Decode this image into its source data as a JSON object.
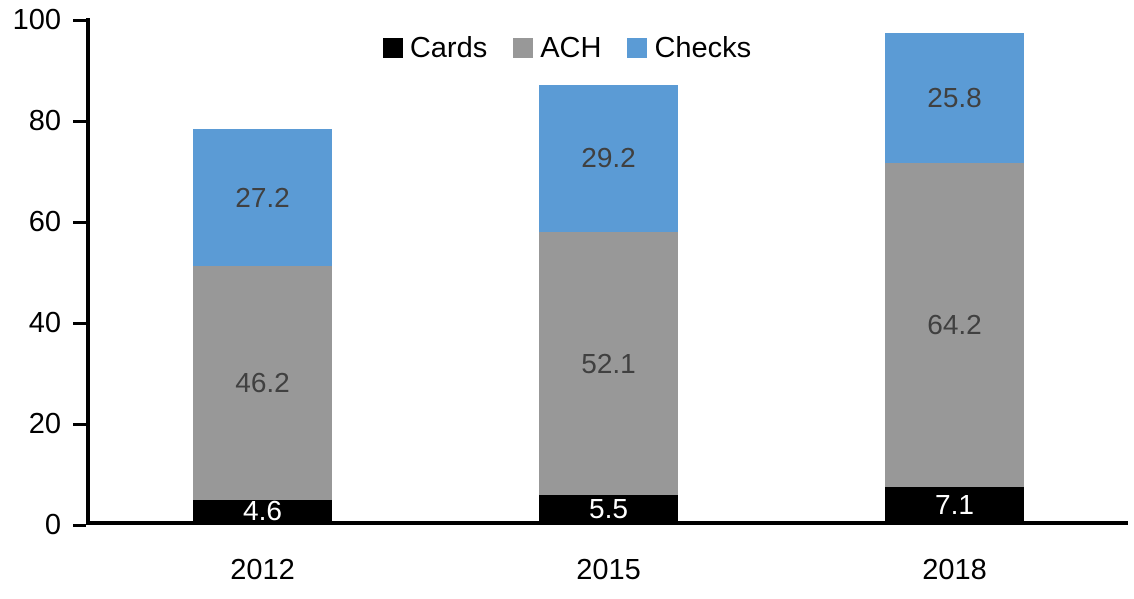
{
  "chart_data": {
    "type": "bar",
    "stacked": true,
    "categories": [
      "2012",
      "2015",
      "2018"
    ],
    "series": [
      {
        "name": "Cards",
        "color": "#000000",
        "label_color": "#ffffff",
        "values": [
          4.6,
          5.5,
          7.1
        ]
      },
      {
        "name": "ACH",
        "color": "#989898",
        "label_color": "#404040",
        "values": [
          46.2,
          52.1,
          64.2
        ]
      },
      {
        "name": "Checks",
        "color": "#5B9BD5",
        "label_color": "#404040",
        "values": [
          27.2,
          29.2,
          25.8
        ]
      }
    ],
    "yticks": [
      0,
      20,
      40,
      60,
      80,
      100
    ],
    "ylim": [
      0,
      100
    ],
    "legend_position": "top-center",
    "grid": false,
    "axis_color": "#000000"
  }
}
